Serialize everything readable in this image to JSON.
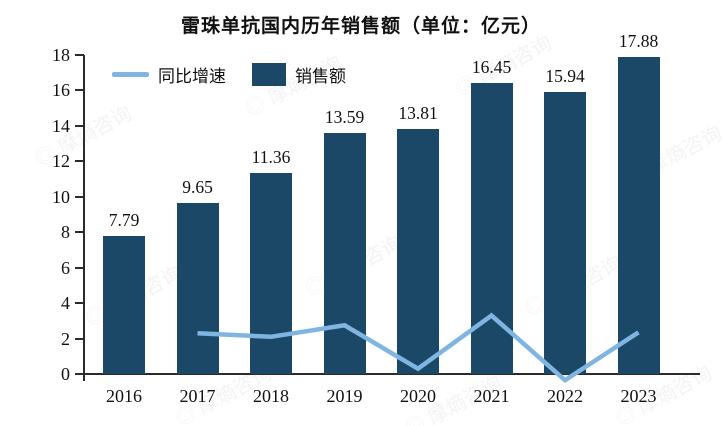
{
  "watermark_text": "◎ 摩熵咨询",
  "colors": {
    "bar": "#1c4868",
    "line": "#7fb5e0",
    "axis": "#2b2b2b",
    "text": "#111111"
  },
  "chart_data": {
    "type": "bar",
    "title": "雷珠单抗国内历年销售额（单位：亿元）",
    "categories": [
      "2016",
      "2017",
      "2018",
      "2019",
      "2020",
      "2021",
      "2022",
      "2023"
    ],
    "series": [
      {
        "name": "销售额",
        "chart_type": "bar",
        "values": [
          7.79,
          9.65,
          11.36,
          13.59,
          13.81,
          16.45,
          15.94,
          17.88
        ],
        "data_labels": [
          "7.79",
          "9.65",
          "11.36",
          "13.59",
          "13.81",
          "16.45",
          "15.94",
          "17.88"
        ],
        "color": "#1c4868"
      },
      {
        "name": "同比增速",
        "chart_type": "line",
        "values_left_axis_scale": [
          null,
          2.3,
          2.1,
          2.75,
          0.3,
          3.3,
          -0.35,
          2.35
        ],
        "color": "#7fb5e0",
        "axis": "secondary (not shown)"
      }
    ],
    "xlabel": "",
    "ylabel": "",
    "ylim": [
      0,
      18
    ],
    "yticks": [
      0,
      2,
      4,
      6,
      8,
      10,
      12,
      14,
      16,
      18
    ],
    "grid": false,
    "legend_position": "top-left",
    "data_labels_shown": true
  }
}
